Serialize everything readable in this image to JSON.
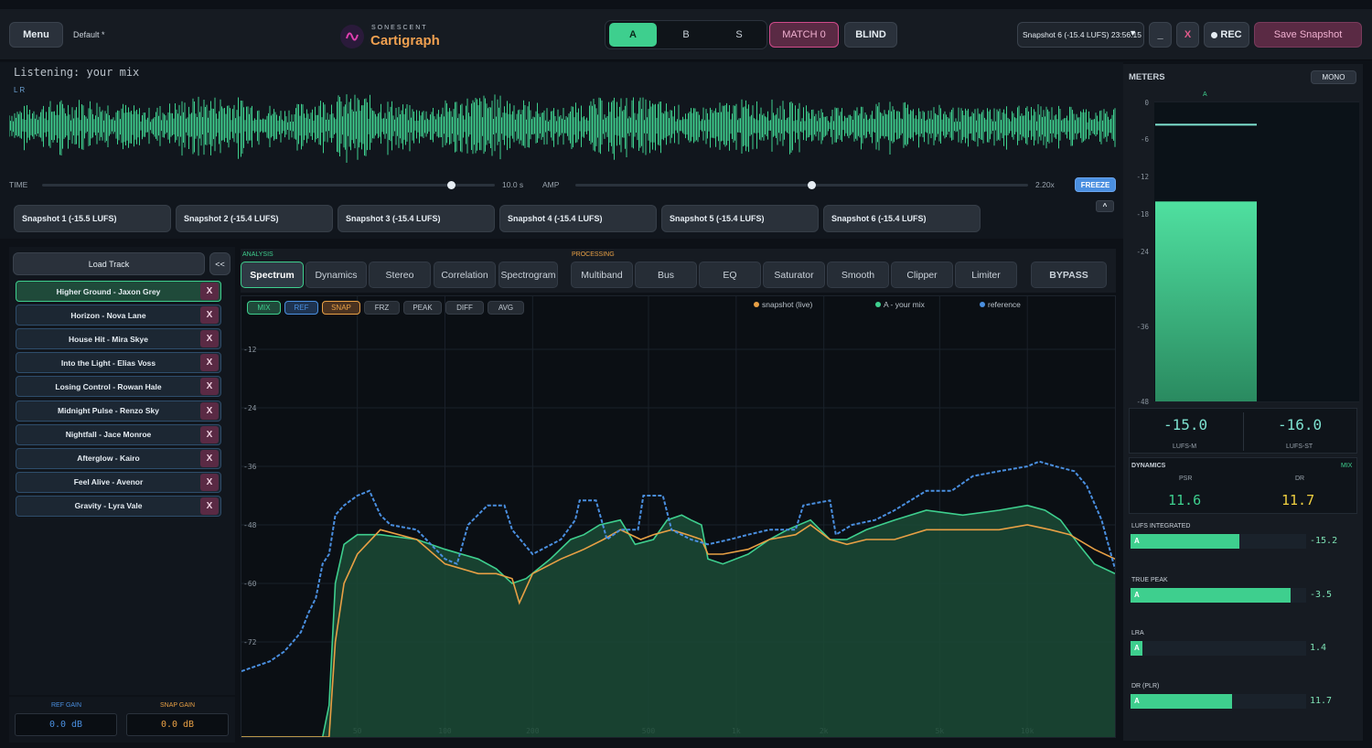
{
  "header": {
    "menu_label": "Menu",
    "preset": "Default *",
    "logo_sub": "SONESCENT",
    "logo_main": "Cartigraph",
    "ab_options": [
      "A",
      "B",
      "S"
    ],
    "match_label": "MATCH 0",
    "blind_label": "BLIND",
    "snapshot_select": "Snapshot 6 (-15.4 LUFS) 23:56:15",
    "minimize_label": "_",
    "close_label": "X",
    "rec_label": "REC",
    "save_label": "Save Snapshot"
  },
  "waveform": {
    "listening": "Listening: your mix",
    "channels": "L  R",
    "time_label": "TIME",
    "time_value": "10.0 s",
    "time_slider": 0.88,
    "amp_label": "AMP",
    "amp_value": "2.20x",
    "amp_slider": 0.52,
    "freeze_label": "FREEZE",
    "collapse_label": "^",
    "color": "#3ecf8e"
  },
  "snapshots": [
    "Snapshot 1 (-15.5 LUFS)",
    "Snapshot 2 (-15.4 LUFS)",
    "Snapshot 3 (-15.4 LUFS)",
    "Snapshot 4 (-15.4 LUFS)",
    "Snapshot 5 (-15.4 LUFS)",
    "Snapshot 6 (-15.4 LUFS)"
  ],
  "tracks": {
    "load_label": "Load Track",
    "collapse_label": "<<",
    "remove_label": "X",
    "items": [
      "Higher Ground - Jaxon Grey",
      "Horizon - Nova Lane",
      "House Hit - Mira Skye",
      "Into the Light - Elias Voss",
      "Losing Control - Rowan Hale",
      "Midnight Pulse - Renzo Sky",
      "Nightfall - Jace Monroe",
      "Afterglow - Kairo",
      "Feel Alive - Avenor",
      "Gravity - Lyra Vale"
    ],
    "active_index": 0
  },
  "gains": {
    "ref_label": "REF GAIN",
    "ref_value": "0.0 dB",
    "snap_label": "SNAP GAIN",
    "snap_value": "0.0 dB"
  },
  "tabs": {
    "analysis_label": "ANALYSIS",
    "processing_label": "PROCESSING",
    "analysis": [
      "Spectrum",
      "Dynamics",
      "Stereo",
      "Correlation",
      "Spectrogram"
    ],
    "processing": [
      "Multiband",
      "Bus",
      "EQ",
      "Saturator",
      "Smooth",
      "Clipper",
      "Limiter"
    ],
    "bypass_label": "BYPASS",
    "active": "Spectrum"
  },
  "spectrum": {
    "chips": [
      "MIX",
      "REF",
      "SNAP",
      "FRZ",
      "PEAK",
      "DIFF",
      "AVG"
    ],
    "legend": [
      {
        "label": "snapshot (live)",
        "color": "#e8a045"
      },
      {
        "label": "A - your mix",
        "color": "#3ecf8e"
      },
      {
        "label": "reference",
        "color": "#4a8fe0"
      }
    ],
    "y_ticks": [
      "-12",
      "-24",
      "-36",
      "-48",
      "-60",
      "-72"
    ],
    "x_ticks": [
      "50",
      "100",
      "200",
      "500",
      "1k",
      "2k",
      "5k",
      "10k"
    ]
  },
  "meters": {
    "title": "METERS",
    "mono_label": "MONO",
    "channel": "A",
    "scale": [
      "0",
      "-6",
      "-12",
      "-18",
      "-24",
      "-36",
      "-48"
    ],
    "level_db": -16.0,
    "peak_db": -3.5,
    "lufs_m": "-15.0",
    "lufs_m_label": "LUFS-M",
    "lufs_st": "-16.0",
    "lufs_st_label": "LUFS-ST",
    "dynamics_label": "DYNAMICS",
    "dynamics_mode": "MIX",
    "psr_label": "PSR",
    "psr_value": "11.6",
    "dr_label": "DR",
    "dr_value": "11.7",
    "bars": [
      {
        "label": "LUFS INTEGRATED",
        "value": "-15.2",
        "fill": 0.62
      },
      {
        "label": "TRUE PEAK",
        "value": "-3.5",
        "fill": 0.91
      },
      {
        "label": "LRA",
        "value": "1.4",
        "fill": 0.07
      },
      {
        "label": "DR (PLR)",
        "value": "11.7",
        "fill": 0.58
      }
    ],
    "bar_channel": "A"
  }
}
